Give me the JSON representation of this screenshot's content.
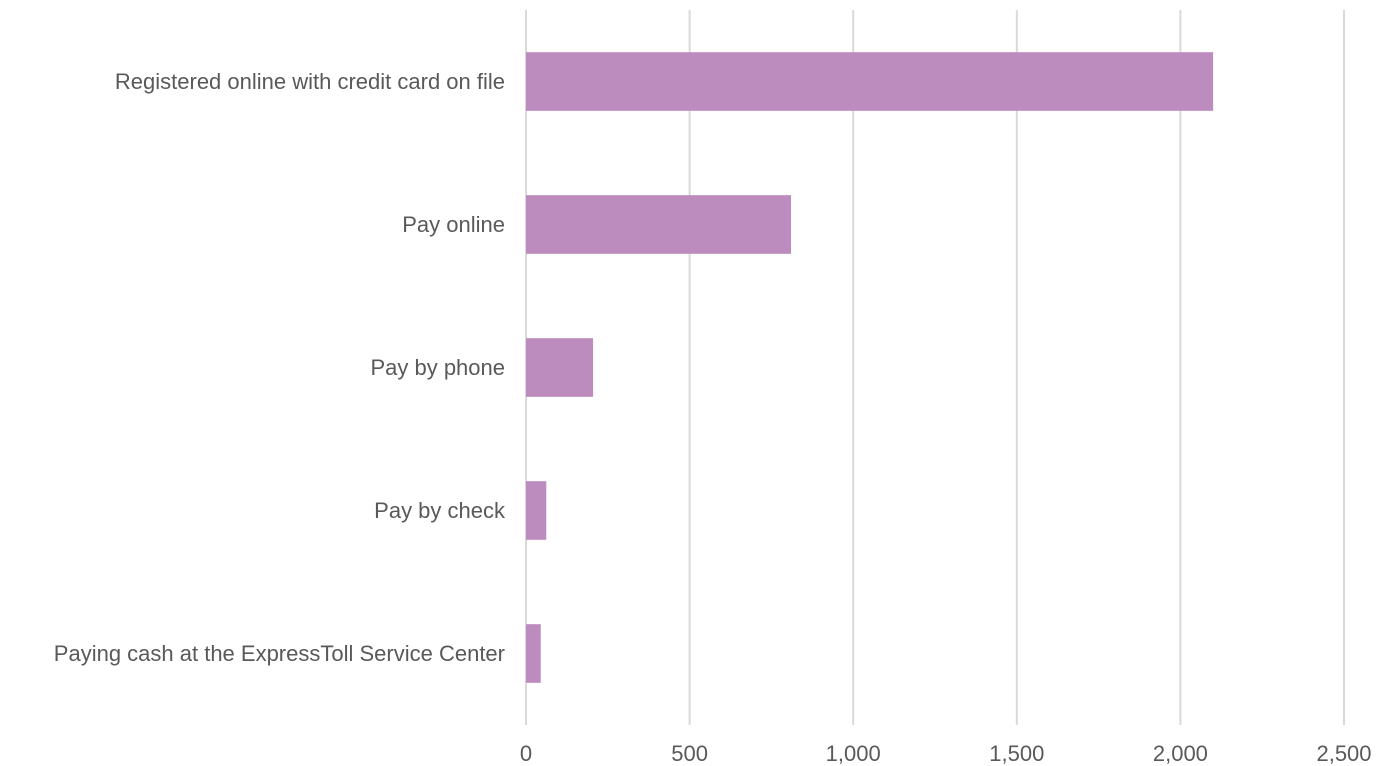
{
  "chart_data": {
    "type": "bar",
    "orientation": "horizontal",
    "categories": [
      "Registered online with credit card on file",
      "Pay online",
      "Pay by phone",
      "Pay by check",
      "Paying cash at the ExpressToll Service Center"
    ],
    "values": [
      2100,
      810,
      205,
      62,
      45
    ],
    "xlim": [
      0,
      2500
    ],
    "xticks": [
      0,
      500,
      1000,
      1500,
      2000,
      2500
    ],
    "xtick_labels": [
      "0",
      "500",
      "1,000",
      "1,500",
      "2,000",
      "2,500"
    ],
    "title": "",
    "xlabel": "",
    "ylabel": "",
    "grid": "vertical",
    "legend": "none",
    "bar_color": "#bc8cbf",
    "grid_color": "#d9d9d9",
    "text_color": "#595959"
  }
}
